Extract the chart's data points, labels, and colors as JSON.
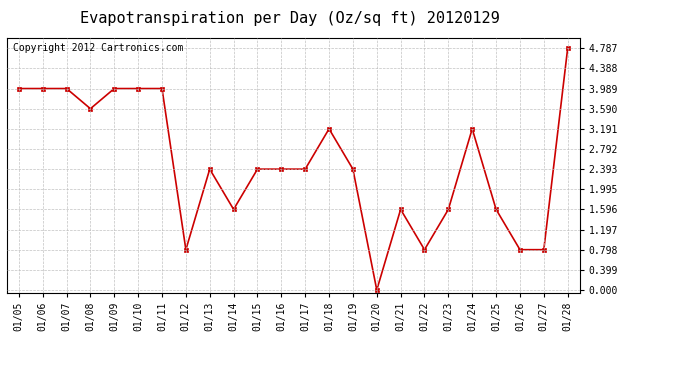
{
  "title": "Evapotranspiration per Day (Oz/sq ft) 20120129",
  "copyright": "Copyright 2012 Cartronics.com",
  "x_labels": [
    "01/05",
    "01/06",
    "01/07",
    "01/08",
    "01/09",
    "01/10",
    "01/11",
    "01/12",
    "01/13",
    "01/14",
    "01/15",
    "01/16",
    "01/17",
    "01/18",
    "01/19",
    "01/20",
    "01/21",
    "01/22",
    "01/23",
    "01/24",
    "01/25",
    "01/26",
    "01/27",
    "01/28"
  ],
  "y_values": [
    3.989,
    3.989,
    3.989,
    3.59,
    3.989,
    3.989,
    3.989,
    0.798,
    2.393,
    1.596,
    2.393,
    2.393,
    2.393,
    3.191,
    2.393,
    0.0,
    1.596,
    0.798,
    1.596,
    3.191,
    1.596,
    0.798,
    0.798,
    4.787
  ],
  "y_ticks": [
    0.0,
    0.399,
    0.798,
    1.197,
    1.596,
    1.995,
    2.393,
    2.792,
    3.191,
    3.59,
    3.989,
    4.388,
    4.787
  ],
  "line_color": "#cc0000",
  "marker": "s",
  "marker_size": 3,
  "bg_color": "#ffffff",
  "grid_color": "#bbbbbb",
  "title_fontsize": 11,
  "copyright_fontsize": 7,
  "tick_fontsize": 7
}
